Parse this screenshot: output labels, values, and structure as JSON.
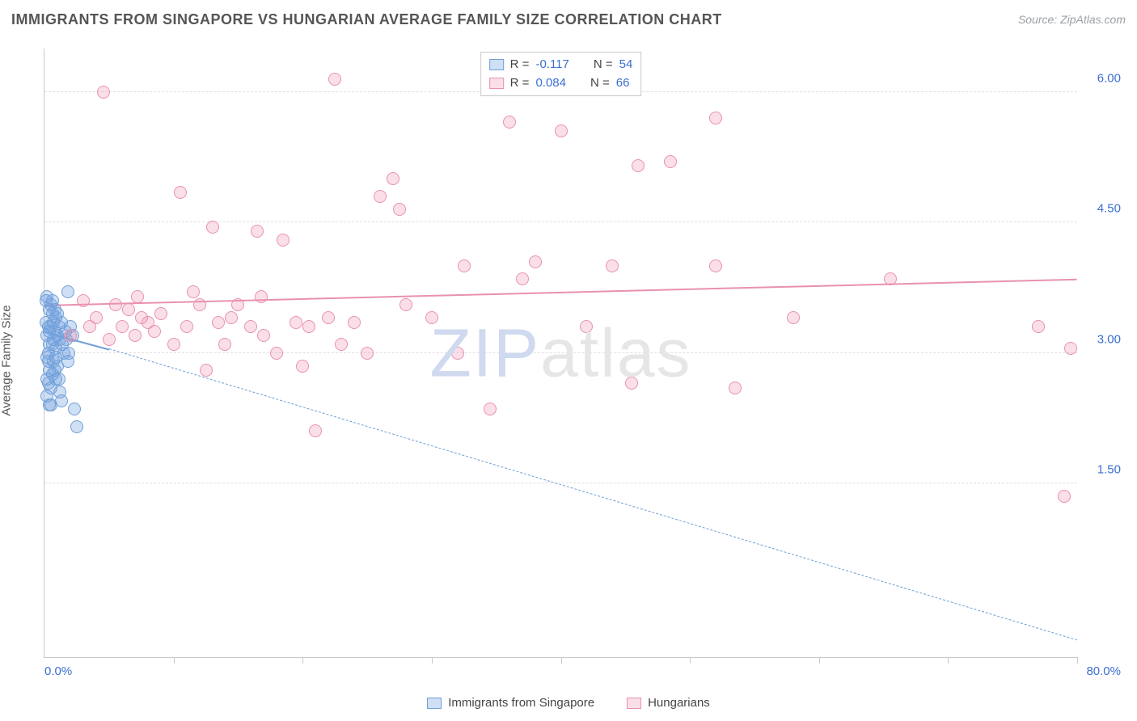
{
  "header": {
    "title": "IMMIGRANTS FROM SINGAPORE VS HUNGARIAN AVERAGE FAMILY SIZE CORRELATION CHART",
    "source": "Source: ZipAtlas.com"
  },
  "watermark": {
    "prefix": "ZIP",
    "suffix": "atlas"
  },
  "chart": {
    "type": "scatter",
    "ylabel": "Average Family Size",
    "xlim": [
      0,
      80
    ],
    "ylim": [
      -0.5,
      6.5
    ],
    "xlim_labels": {
      "min": "0.0%",
      "max": "80.0%"
    },
    "yticks": [
      1.5,
      3.0,
      4.5,
      6.0
    ],
    "ytick_labels": [
      "1.50",
      "3.00",
      "4.50",
      "6.00"
    ],
    "xticks": [
      10,
      20,
      30,
      40,
      50,
      60,
      70,
      80
    ],
    "grid_color": "#e0e0e0",
    "axis_color": "#c9c9c9",
    "tick_label_color": "#3b6fd1",
    "marker_radius": 8,
    "series": [
      {
        "id": "singapore",
        "label": "Immigrants from Singapore",
        "color_fill": "rgba(117,162,224,0.35)",
        "color_stroke": "#6f9fd8",
        "R": "-0.117",
        "N": "54",
        "trend": {
          "x1": 0,
          "y1": 3.25,
          "x2": 80,
          "y2": -0.3,
          "style_solid": {
            "x1": 0,
            "y1": 3.25,
            "x2": 5,
            "y2": 3.05
          }
        },
        "points": [
          [
            0.2,
            3.65
          ],
          [
            1.8,
            3.7
          ],
          [
            0.4,
            3.5
          ],
          [
            0.6,
            3.45
          ],
          [
            0.1,
            3.35
          ],
          [
            0.3,
            3.3
          ],
          [
            0.5,
            3.3
          ],
          [
            0.8,
            3.25
          ],
          [
            0.2,
            3.2
          ],
          [
            1.0,
            3.2
          ],
          [
            1.2,
            3.15
          ],
          [
            0.4,
            3.1
          ],
          [
            0.6,
            3.1
          ],
          [
            0.9,
            3.05
          ],
          [
            0.3,
            3.0
          ],
          [
            1.5,
            3.0
          ],
          [
            0.2,
            2.95
          ],
          [
            0.7,
            2.9
          ],
          [
            1.0,
            2.85
          ],
          [
            0.4,
            2.8
          ],
          [
            0.6,
            2.75
          ],
          [
            0.9,
            2.7
          ],
          [
            0.3,
            2.65
          ],
          [
            0.5,
            2.6
          ],
          [
            1.2,
            2.55
          ],
          [
            0.2,
            2.5
          ],
          [
            1.3,
            2.45
          ],
          [
            0.4,
            2.4
          ],
          [
            2.3,
            2.35
          ],
          [
            2.5,
            2.15
          ],
          [
            0.7,
            3.35
          ],
          [
            1.1,
            3.3
          ],
          [
            0.9,
            3.4
          ],
          [
            1.6,
            3.25
          ],
          [
            2.0,
            3.3
          ],
          [
            1.4,
            3.1
          ],
          [
            0.1,
            3.6
          ],
          [
            0.8,
            3.5
          ],
          [
            1.3,
            3.35
          ],
          [
            0.5,
            3.55
          ],
          [
            0.3,
            2.9
          ],
          [
            1.7,
            3.15
          ],
          [
            1.9,
            3.0
          ],
          [
            2.2,
            3.2
          ],
          [
            0.6,
            3.6
          ],
          [
            0.2,
            2.7
          ],
          [
            0.8,
            2.8
          ],
          [
            1.1,
            2.7
          ],
          [
            1.0,
            3.45
          ],
          [
            0.4,
            3.25
          ],
          [
            0.7,
            3.15
          ],
          [
            0.9,
            2.95
          ],
          [
            0.5,
            2.4
          ],
          [
            1.8,
            2.9
          ]
        ]
      },
      {
        "id": "hungarians",
        "label": "Hungarians",
        "color_fill": "rgba(240,149,178,0.30)",
        "color_stroke": "#e991ae",
        "R": "0.084",
        "N": "66",
        "trend": {
          "x1": 0,
          "y1": 3.55,
          "x2": 80,
          "y2": 3.85
        },
        "points": [
          [
            4.6,
            6.0
          ],
          [
            22.5,
            6.15
          ],
          [
            27.0,
            5.0
          ],
          [
            27.5,
            4.65
          ],
          [
            30.0,
            3.4
          ],
          [
            32.0,
            3.0
          ],
          [
            32.5,
            4.0
          ],
          [
            34.5,
            2.35
          ],
          [
            36.0,
            5.65
          ],
          [
            37.0,
            3.85
          ],
          [
            38.0,
            4.05
          ],
          [
            40.0,
            5.55
          ],
          [
            42.0,
            3.3
          ],
          [
            44.0,
            4.0
          ],
          [
            45.5,
            2.65
          ],
          [
            46.0,
            5.15
          ],
          [
            48.5,
            5.2
          ],
          [
            52.0,
            5.7
          ],
          [
            52.0,
            4.0
          ],
          [
            53.5,
            2.6
          ],
          [
            58.0,
            3.4
          ],
          [
            65.5,
            3.85
          ],
          [
            77.0,
            3.3
          ],
          [
            79.5,
            3.05
          ],
          [
            79.0,
            1.35
          ],
          [
            2.0,
            3.2
          ],
          [
            3.0,
            3.6
          ],
          [
            3.5,
            3.3
          ],
          [
            4.0,
            3.4
          ],
          [
            5.0,
            3.15
          ],
          [
            5.5,
            3.55
          ],
          [
            6.0,
            3.3
          ],
          [
            6.5,
            3.5
          ],
          [
            7.0,
            3.2
          ],
          [
            7.5,
            3.4
          ],
          [
            8.0,
            3.35
          ],
          [
            8.5,
            3.25
          ],
          [
            9.0,
            3.45
          ],
          [
            10.0,
            3.1
          ],
          [
            10.5,
            4.85
          ],
          [
            11.0,
            3.3
          ],
          [
            12.0,
            3.55
          ],
          [
            12.5,
            2.8
          ],
          [
            13.0,
            4.45
          ],
          [
            13.5,
            3.35
          ],
          [
            14.0,
            3.1
          ],
          [
            15.0,
            3.55
          ],
          [
            16.0,
            3.3
          ],
          [
            16.5,
            4.4
          ],
          [
            17.0,
            3.2
          ],
          [
            18.0,
            3.0
          ],
          [
            18.5,
            4.3
          ],
          [
            19.5,
            3.35
          ],
          [
            20.0,
            2.85
          ],
          [
            20.5,
            3.3
          ],
          [
            21.0,
            2.1
          ],
          [
            22.0,
            3.4
          ],
          [
            23.0,
            3.1
          ],
          [
            24.0,
            3.35
          ],
          [
            25.0,
            3.0
          ],
          [
            26.0,
            4.8
          ],
          [
            28.0,
            3.55
          ],
          [
            7.2,
            3.65
          ],
          [
            14.5,
            3.4
          ],
          [
            16.8,
            3.65
          ],
          [
            11.5,
            3.7
          ]
        ]
      }
    ]
  },
  "legend": {
    "items": [
      {
        "series": "singapore"
      },
      {
        "series": "hungarians"
      }
    ]
  }
}
